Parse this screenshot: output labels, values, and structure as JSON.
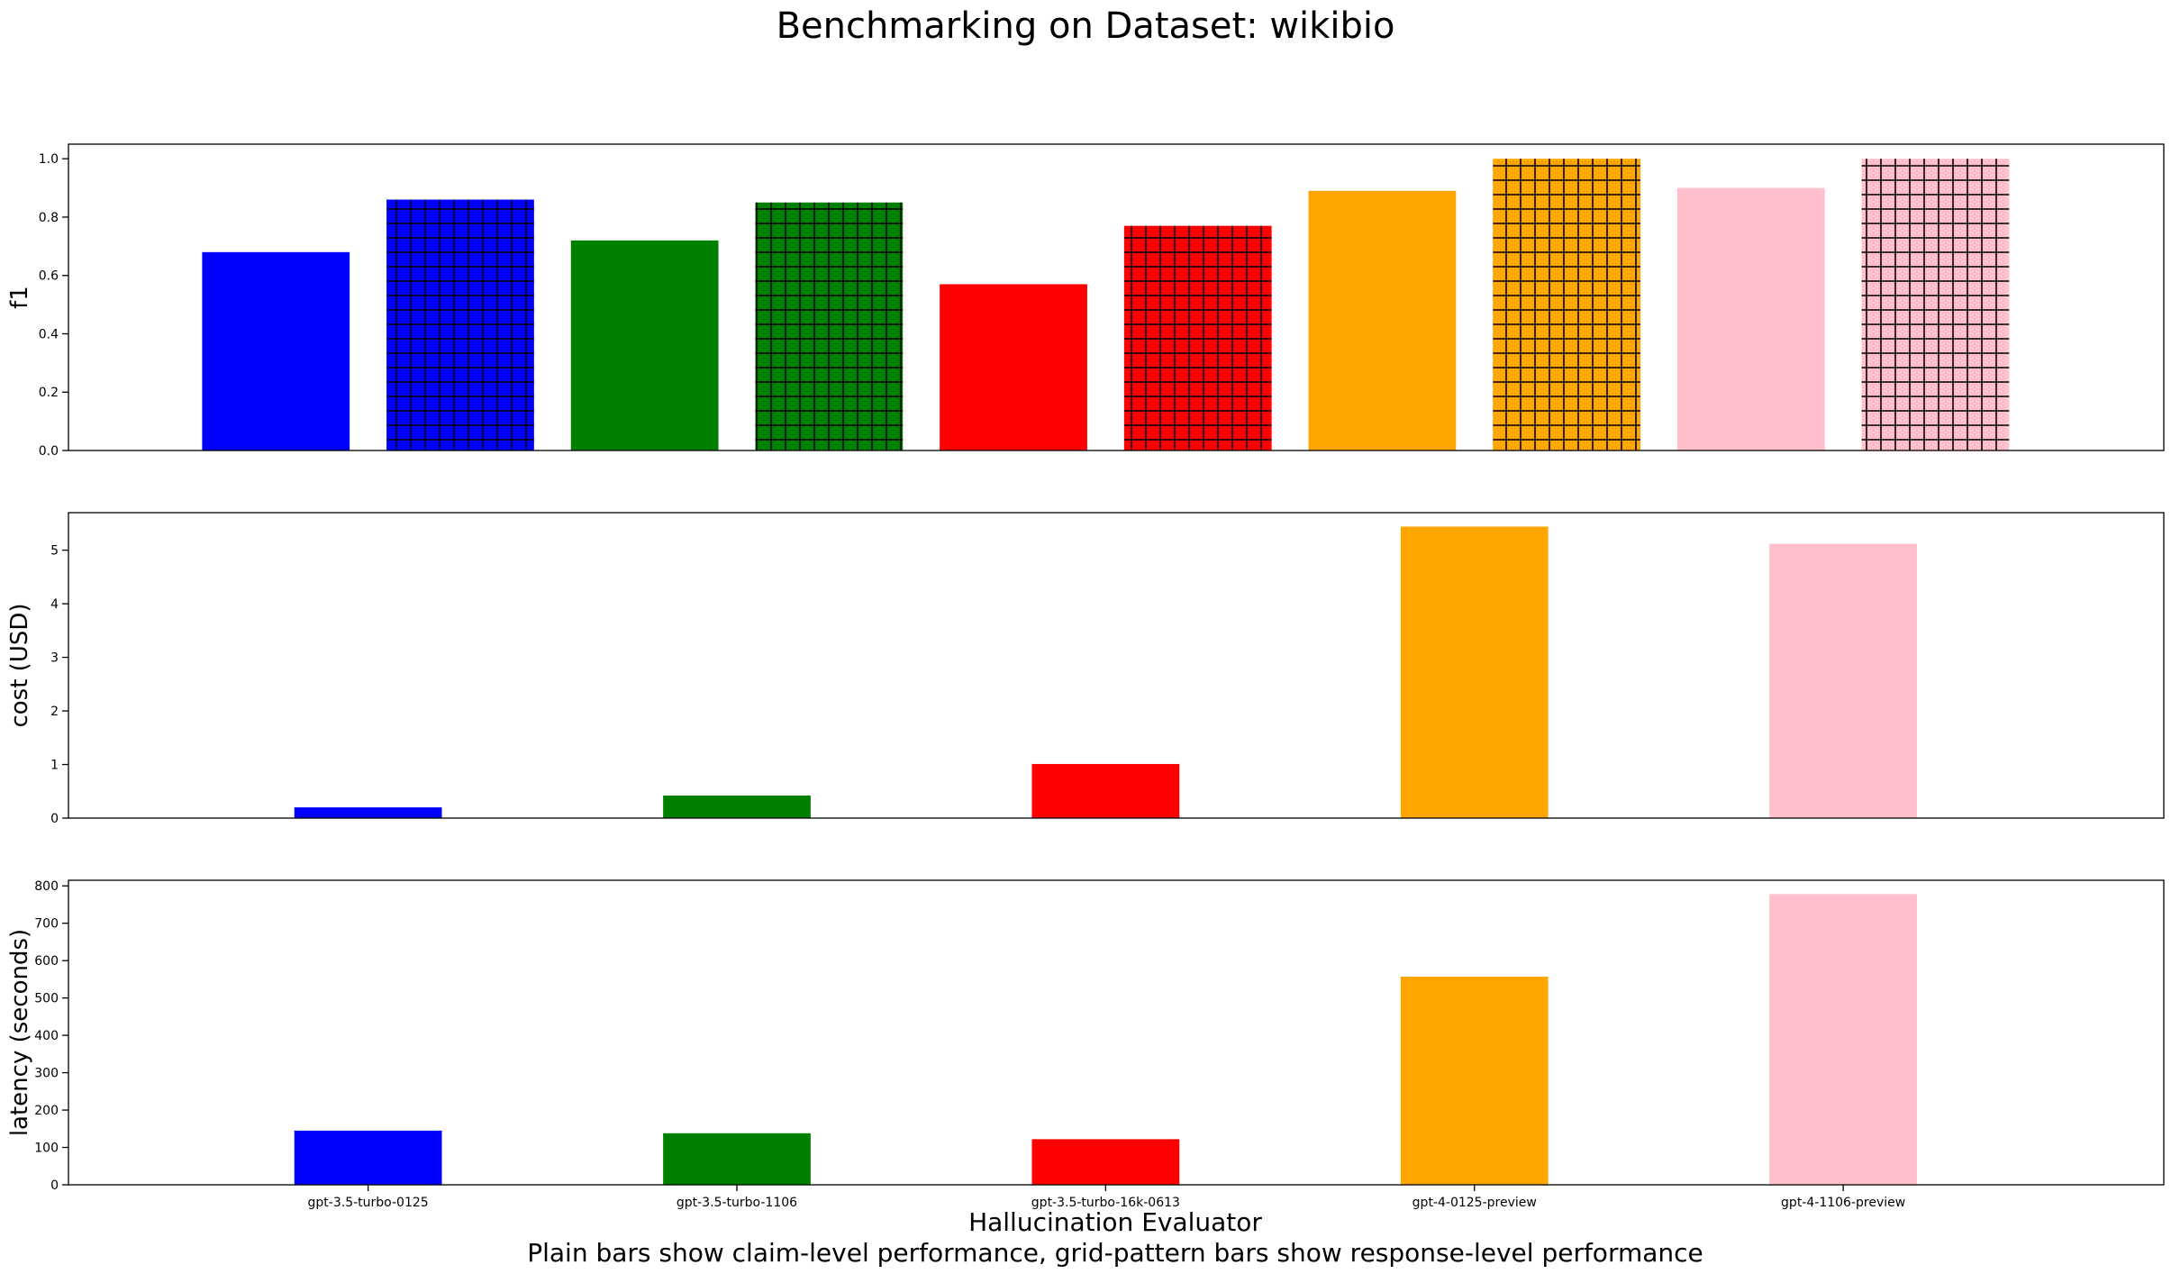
{
  "chart_data": {
    "type": "bar",
    "title": "Benchmarking on Dataset: wikibio",
    "xlabel": "Hallucination Evaluator",
    "caption": "Plain bars show claim-level performance, grid-pattern bars show response-level performance",
    "categories": [
      "gpt-3.5-turbo-0125",
      "gpt-3.5-turbo-1106",
      "gpt-3.5-turbo-16k-0613",
      "gpt-4-0125-preview",
      "gpt-4-1106-preview"
    ],
    "colors": [
      "#0000ff",
      "#008000",
      "#ff0000",
      "#ffa500",
      "#ffc0cb"
    ],
    "subplots": [
      {
        "ylabel": "f1",
        "ylim": [
          0,
          1.05
        ],
        "yticks": [
          "0.0",
          "0.2",
          "0.4",
          "0.6",
          "0.8",
          "1.0"
        ],
        "series": [
          {
            "name": "claim-level",
            "pattern": "plain",
            "values": [
              0.68,
              0.72,
              0.57,
              0.89,
              0.9
            ]
          },
          {
            "name": "response-level",
            "pattern": "grid",
            "values": [
              0.86,
              0.85,
              0.77,
              1.0,
              1.0
            ]
          }
        ]
      },
      {
        "ylabel": "cost (USD)",
        "ylim": [
          0,
          5.7
        ],
        "yticks": [
          "0",
          "1",
          "2",
          "3",
          "4",
          "5"
        ],
        "series": [
          {
            "pattern": "plain",
            "values": [
              0.2,
              0.42,
              1.01,
              5.44,
              5.12
            ]
          }
        ]
      },
      {
        "ylabel": "latency (seconds)",
        "ylim": [
          0,
          815
        ],
        "yticks": [
          "0",
          "100",
          "200",
          "300",
          "400",
          "500",
          "600",
          "700",
          "800"
        ],
        "series": [
          {
            "pattern": "plain",
            "values": [
              145,
              138,
              122,
              557,
              778
            ]
          }
        ]
      }
    ],
    "grid": false
  }
}
